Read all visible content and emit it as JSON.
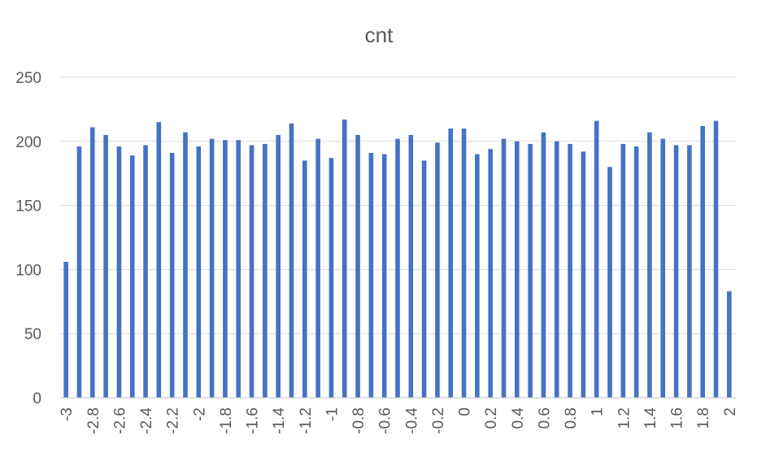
{
  "chart_data": {
    "type": "bar",
    "title": "cnt",
    "xlabel": "",
    "ylabel": "",
    "ylim": [
      0,
      250
    ],
    "yticks": [
      0,
      50,
      100,
      150,
      200,
      250
    ],
    "grid": true,
    "bar_color": "#4472C4",
    "categories": [
      "-3",
      "-2.9",
      "-2.8",
      "-2.7",
      "-2.6",
      "-2.5",
      "-2.4",
      "-2.3",
      "-2.2",
      "-2.1",
      "-2",
      "-1.9",
      "-1.8",
      "-1.7",
      "-1.6",
      "-1.5",
      "-1.4",
      "-1.3",
      "-1.2",
      "-1.1",
      "-1",
      "-0.9",
      "-0.8",
      "-0.7",
      "-0.6",
      "-0.5",
      "-0.4",
      "-0.3",
      "-0.2",
      "-0.1",
      "0",
      "0.1",
      "0.2",
      "0.3",
      "0.4",
      "0.5",
      "0.6",
      "0.7",
      "0.8",
      "0.9",
      "1",
      "1.1",
      "1.2",
      "1.3",
      "1.4",
      "1.5",
      "1.6",
      "1.7",
      "1.8",
      "1.9",
      "2"
    ],
    "xtick_labels": [
      "-3",
      "-2.8",
      "-2.6",
      "-2.4",
      "-2.2",
      "-2",
      "-1.8",
      "-1.6",
      "-1.4",
      "-1.2",
      "-1",
      "-0.8",
      "-0.6",
      "-0.4",
      "-0.2",
      "0",
      "0.2",
      "0.4",
      "0.6",
      "0.8",
      "1",
      "1.2",
      "1.4",
      "1.6",
      "1.8",
      "2"
    ],
    "values": [
      106,
      196,
      211,
      205,
      196,
      189,
      197,
      215,
      191,
      207,
      196,
      202,
      201,
      201,
      197,
      198,
      205,
      214,
      185,
      202,
      187,
      217,
      205,
      191,
      190,
      202,
      205,
      185,
      199,
      210,
      210,
      190,
      194,
      202,
      200,
      198,
      207,
      200,
      198,
      192,
      216,
      180,
      198,
      196,
      207,
      202,
      197,
      197,
      212,
      216,
      83
    ]
  }
}
